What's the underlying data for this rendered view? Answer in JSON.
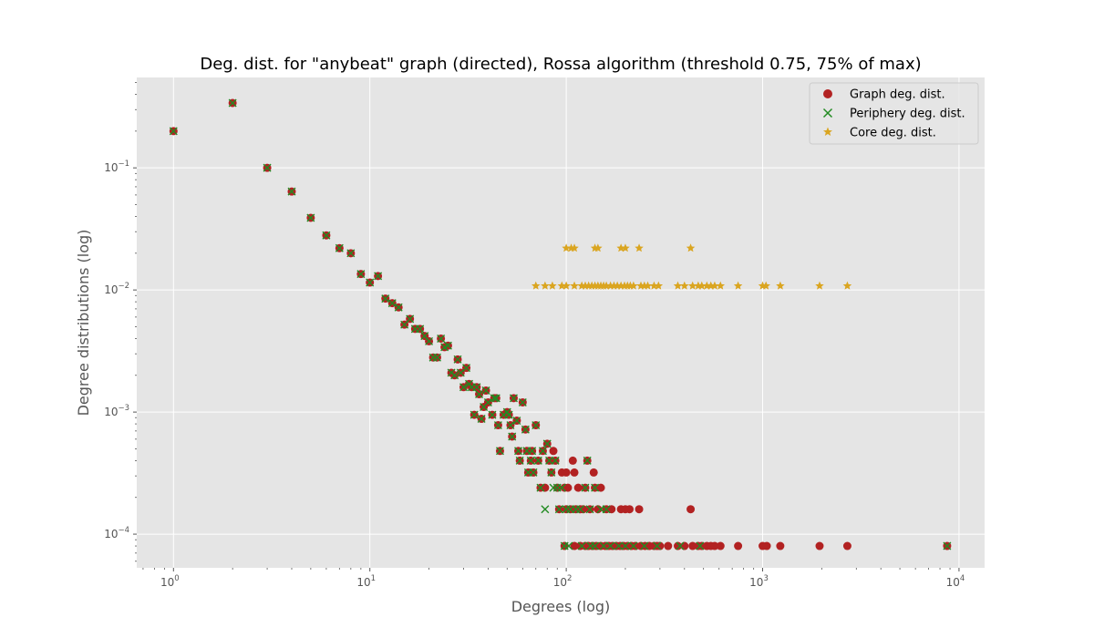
{
  "chart_data": {
    "type": "scatter",
    "title": "Deg. dist. for \"anybeat\" graph (directed), Rossa algorithm (threshold 0.75, 75% of max)",
    "xlabel": "Degrees (log)",
    "ylabel": "Degree distributions (log)",
    "xscale": "log",
    "yscale": "log",
    "xlim": [
      0.65,
      13500
    ],
    "ylim": [
      5.3e-05,
      0.55
    ],
    "grid": true,
    "legend_position": "top-right",
    "x_ticks": [
      {
        "value": 1,
        "base": "10",
        "exp": "0"
      },
      {
        "value": 10,
        "base": "10",
        "exp": "1"
      },
      {
        "value": 100,
        "base": "10",
        "exp": "2"
      },
      {
        "value": 1000,
        "base": "10",
        "exp": "3"
      },
      {
        "value": 10000,
        "base": "10",
        "exp": "4"
      }
    ],
    "y_ticks": [
      {
        "value": 0.0001,
        "base": "10",
        "exp": "−4"
      },
      {
        "value": 0.001,
        "base": "10",
        "exp": "−3"
      },
      {
        "value": 0.01,
        "base": "10",
        "exp": "−2"
      },
      {
        "value": 0.1,
        "base": "10",
        "exp": "−1"
      }
    ],
    "series": [
      {
        "name": "Graph deg. dist.",
        "marker": "circle",
        "color": "#b22222",
        "points": [
          [
            1,
            0.2
          ],
          [
            2,
            0.34
          ],
          [
            3,
            0.1
          ],
          [
            4,
            0.064
          ],
          [
            5,
            0.039
          ],
          [
            6,
            0.028
          ],
          [
            7,
            0.022
          ],
          [
            8,
            0.02
          ],
          [
            9,
            0.0135
          ],
          [
            10,
            0.0115
          ],
          [
            11,
            0.013
          ],
          [
            12,
            0.0085
          ],
          [
            13,
            0.0078
          ],
          [
            14,
            0.0072
          ],
          [
            15,
            0.0052
          ],
          [
            16,
            0.0058
          ],
          [
            17,
            0.0048
          ],
          [
            18,
            0.0048
          ],
          [
            19,
            0.0042
          ],
          [
            20,
            0.0038
          ],
          [
            21,
            0.0028
          ],
          [
            22,
            0.0028
          ],
          [
            23,
            0.004
          ],
          [
            24,
            0.0034
          ],
          [
            25,
            0.0035
          ],
          [
            26,
            0.0021
          ],
          [
            27,
            0.002
          ],
          [
            28,
            0.0027
          ],
          [
            29,
            0.0021
          ],
          [
            30,
            0.0016
          ],
          [
            31,
            0.0023
          ],
          [
            32,
            0.0017
          ],
          [
            33,
            0.0016
          ],
          [
            34,
            0.00095
          ],
          [
            35,
            0.0016
          ],
          [
            36,
            0.0014
          ],
          [
            37,
            0.00088
          ],
          [
            38,
            0.0011
          ],
          [
            39,
            0.0015
          ],
          [
            40,
            0.0012
          ],
          [
            42,
            0.00095
          ],
          [
            43,
            0.0013
          ],
          [
            44,
            0.0013
          ],
          [
            45,
            0.00078
          ],
          [
            46,
            0.00048
          ],
          [
            48,
            0.00095
          ],
          [
            50,
            0.001
          ],
          [
            51,
            0.00095
          ],
          [
            52,
            0.00078
          ],
          [
            53,
            0.00063
          ],
          [
            54,
            0.0013
          ],
          [
            56,
            0.00085
          ],
          [
            57,
            0.00048
          ],
          [
            58,
            0.0004
          ],
          [
            60,
            0.0012
          ],
          [
            62,
            0.00072
          ],
          [
            63,
            0.00048
          ],
          [
            64,
            0.00032
          ],
          [
            66,
            0.0004
          ],
          [
            67,
            0.00048
          ],
          [
            68,
            0.00032
          ],
          [
            70,
            0.00078
          ],
          [
            72,
            0.0004
          ],
          [
            74,
            0.00024
          ],
          [
            76,
            0.00048
          ],
          [
            78,
            0.00024
          ],
          [
            80,
            0.00055
          ],
          [
            82,
            0.0004
          ],
          [
            84,
            0.00032
          ],
          [
            86,
            0.00048
          ],
          [
            88,
            0.0004
          ],
          [
            90,
            0.00024
          ],
          [
            92,
            0.00016
          ],
          [
            95,
            0.00032
          ],
          [
            98,
            0.00024
          ],
          [
            100,
            0.00032
          ],
          [
            100,
            0.00016
          ],
          [
            102,
            0.00024
          ],
          [
            105,
            0.00016
          ],
          [
            108,
            0.0004
          ],
          [
            110,
            0.00032
          ],
          [
            112,
            0.00016
          ],
          [
            115,
            0.00024
          ],
          [
            118,
            0.00016
          ],
          [
            122,
            0.00016
          ],
          [
            125,
            0.00024
          ],
          [
            128,
            0.0004
          ],
          [
            132,
            0.00016
          ],
          [
            138,
            0.00032
          ],
          [
            140,
            0.00024
          ],
          [
            145,
            0.00016
          ],
          [
            150,
            0.00024
          ],
          [
            160,
            0.00016
          ],
          [
            170,
            0.00016
          ],
          [
            190,
            0.00016
          ],
          [
            200,
            0.00016
          ],
          [
            210,
            0.00016
          ],
          [
            235,
            0.00016
          ],
          [
            430,
            0.00016
          ],
          [
            98,
            8e-05
          ],
          [
            110,
            8e-05
          ],
          [
            118,
            8e-05
          ],
          [
            125,
            8e-05
          ],
          [
            130,
            8e-05
          ],
          [
            136,
            8e-05
          ],
          [
            142,
            8e-05
          ],
          [
            150,
            8e-05
          ],
          [
            158,
            8e-05
          ],
          [
            165,
            8e-05
          ],
          [
            172,
            8e-05
          ],
          [
            180,
            8e-05
          ],
          [
            188,
            8e-05
          ],
          [
            196,
            8e-05
          ],
          [
            205,
            8e-05
          ],
          [
            215,
            8e-05
          ],
          [
            225,
            8e-05
          ],
          [
            240,
            8e-05
          ],
          [
            252,
            8e-05
          ],
          [
            265,
            8e-05
          ],
          [
            280,
            8e-05
          ],
          [
            290,
            8e-05
          ],
          [
            300,
            8e-05
          ],
          [
            330,
            8e-05
          ],
          [
            370,
            8e-05
          ],
          [
            400,
            8e-05
          ],
          [
            440,
            8e-05
          ],
          [
            470,
            8e-05
          ],
          [
            490,
            8e-05
          ],
          [
            520,
            8e-05
          ],
          [
            545,
            8e-05
          ],
          [
            570,
            8e-05
          ],
          [
            610,
            8e-05
          ],
          [
            750,
            8e-05
          ],
          [
            1000,
            8e-05
          ],
          [
            1050,
            8e-05
          ],
          [
            1230,
            8e-05
          ],
          [
            1950,
            8e-05
          ],
          [
            2700,
            8e-05
          ],
          [
            8700,
            8e-05
          ]
        ]
      },
      {
        "name": "Periphery deg. dist.",
        "marker": "x",
        "color": "#228b22",
        "points": [
          [
            1,
            0.2
          ],
          [
            2,
            0.34
          ],
          [
            3,
            0.1
          ],
          [
            4,
            0.064
          ],
          [
            5,
            0.039
          ],
          [
            6,
            0.028
          ],
          [
            7,
            0.022
          ],
          [
            8,
            0.02
          ],
          [
            9,
            0.0135
          ],
          [
            10,
            0.0115
          ],
          [
            11,
            0.013
          ],
          [
            12,
            0.0085
          ],
          [
            13,
            0.0078
          ],
          [
            14,
            0.0072
          ],
          [
            15,
            0.0052
          ],
          [
            16,
            0.0058
          ],
          [
            17,
            0.0048
          ],
          [
            18,
            0.0048
          ],
          [
            19,
            0.0042
          ],
          [
            20,
            0.0038
          ],
          [
            21,
            0.0028
          ],
          [
            22,
            0.0028
          ],
          [
            23,
            0.004
          ],
          [
            24,
            0.0034
          ],
          [
            25,
            0.0035
          ],
          [
            26,
            0.0021
          ],
          [
            27,
            0.002
          ],
          [
            28,
            0.0027
          ],
          [
            29,
            0.0021
          ],
          [
            30,
            0.0016
          ],
          [
            31,
            0.0023
          ],
          [
            32,
            0.0017
          ],
          [
            33,
            0.0016
          ],
          [
            34,
            0.00095
          ],
          [
            35,
            0.0016
          ],
          [
            36,
            0.0014
          ],
          [
            37,
            0.00088
          ],
          [
            38,
            0.0011
          ],
          [
            39,
            0.0015
          ],
          [
            40,
            0.0012
          ],
          [
            42,
            0.00095
          ],
          [
            43,
            0.0013
          ],
          [
            44,
            0.0013
          ],
          [
            45,
            0.00078
          ],
          [
            46,
            0.00048
          ],
          [
            48,
            0.00095
          ],
          [
            50,
            0.001
          ],
          [
            51,
            0.00095
          ],
          [
            52,
            0.00078
          ],
          [
            53,
            0.00063
          ],
          [
            54,
            0.0013
          ],
          [
            56,
            0.00085
          ],
          [
            57,
            0.00048
          ],
          [
            58,
            0.0004
          ],
          [
            60,
            0.0012
          ],
          [
            62,
            0.00072
          ],
          [
            63,
            0.00048
          ],
          [
            64,
            0.00032
          ],
          [
            66,
            0.0004
          ],
          [
            67,
            0.00048
          ],
          [
            68,
            0.00032
          ],
          [
            70,
            0.00078
          ],
          [
            72,
            0.0004
          ],
          [
            74,
            0.00024
          ],
          [
            76,
            0.00048
          ],
          [
            78,
            0.00016
          ],
          [
            80,
            0.00055
          ],
          [
            82,
            0.0004
          ],
          [
            84,
            0.00032
          ],
          [
            86,
            0.00024
          ],
          [
            88,
            0.0004
          ],
          [
            90,
            0.00024
          ],
          [
            92,
            0.00016
          ],
          [
            95,
            0.00024
          ],
          [
            100,
            0.00016
          ],
          [
            105,
            0.00016
          ],
          [
            112,
            0.00016
          ],
          [
            118,
            0.00016
          ],
          [
            125,
            0.00024
          ],
          [
            128,
            0.0004
          ],
          [
            132,
            0.00016
          ],
          [
            140,
            0.00024
          ],
          [
            150,
            0.00016
          ],
          [
            160,
            0.00016
          ],
          [
            98,
            8e-05
          ],
          [
            103,
            8e-05
          ],
          [
            120,
            8e-05
          ],
          [
            133,
            8e-05
          ],
          [
            140,
            8e-05
          ],
          [
            155,
            8e-05
          ],
          [
            168,
            8e-05
          ],
          [
            185,
            8e-05
          ],
          [
            200,
            8e-05
          ],
          [
            220,
            8e-05
          ],
          [
            250,
            8e-05
          ],
          [
            290,
            8e-05
          ],
          [
            380,
            8e-05
          ],
          [
            480,
            8e-05
          ],
          [
            8700,
            8e-05
          ]
        ]
      },
      {
        "name": "Core deg. dist.",
        "marker": "star",
        "color": "#daa520",
        "points": [
          [
            100,
            0.022
          ],
          [
            106,
            0.022
          ],
          [
            110,
            0.022
          ],
          [
            140,
            0.022
          ],
          [
            145,
            0.022
          ],
          [
            190,
            0.022
          ],
          [
            200,
            0.022
          ],
          [
            235,
            0.022
          ],
          [
            430,
            0.022
          ],
          [
            70,
            0.0108
          ],
          [
            78,
            0.0108
          ],
          [
            85,
            0.0108
          ],
          [
            95,
            0.0108
          ],
          [
            100,
            0.0108
          ],
          [
            110,
            0.0108
          ],
          [
            120,
            0.0108
          ],
          [
            125,
            0.0108
          ],
          [
            130,
            0.0108
          ],
          [
            135,
            0.0108
          ],
          [
            140,
            0.0108
          ],
          [
            145,
            0.0108
          ],
          [
            150,
            0.0108
          ],
          [
            155,
            0.0108
          ],
          [
            160,
            0.0108
          ],
          [
            168,
            0.0108
          ],
          [
            175,
            0.0108
          ],
          [
            182,
            0.0108
          ],
          [
            190,
            0.0108
          ],
          [
            198,
            0.0108
          ],
          [
            205,
            0.0108
          ],
          [
            212,
            0.0108
          ],
          [
            220,
            0.0108
          ],
          [
            240,
            0.0108
          ],
          [
            250,
            0.0108
          ],
          [
            260,
            0.0108
          ],
          [
            280,
            0.0108
          ],
          [
            295,
            0.0108
          ],
          [
            370,
            0.0108
          ],
          [
            400,
            0.0108
          ],
          [
            440,
            0.0108
          ],
          [
            470,
            0.0108
          ],
          [
            490,
            0.0108
          ],
          [
            520,
            0.0108
          ],
          [
            545,
            0.0108
          ],
          [
            570,
            0.0108
          ],
          [
            610,
            0.0108
          ],
          [
            750,
            0.0108
          ],
          [
            1000,
            0.0108
          ],
          [
            1040,
            0.0108
          ],
          [
            1230,
            0.0108
          ],
          [
            1950,
            0.0108
          ],
          [
            2700,
            0.0108
          ]
        ]
      }
    ]
  }
}
